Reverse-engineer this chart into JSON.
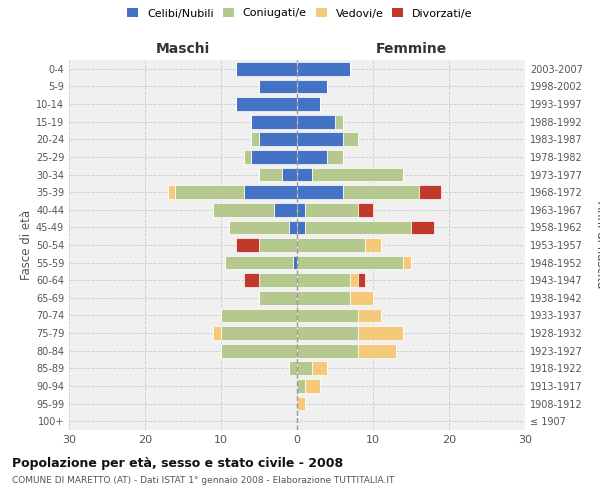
{
  "age_groups": [
    "100+",
    "95-99",
    "90-94",
    "85-89",
    "80-84",
    "75-79",
    "70-74",
    "65-69",
    "60-64",
    "55-59",
    "50-54",
    "45-49",
    "40-44",
    "35-39",
    "30-34",
    "25-29",
    "20-24",
    "15-19",
    "10-14",
    "5-9",
    "0-4"
  ],
  "birth_years": [
    "≤ 1907",
    "1908-1912",
    "1913-1917",
    "1918-1922",
    "1923-1927",
    "1928-1932",
    "1933-1937",
    "1938-1942",
    "1943-1947",
    "1948-1952",
    "1953-1957",
    "1958-1962",
    "1963-1967",
    "1968-1972",
    "1973-1977",
    "1978-1982",
    "1983-1987",
    "1988-1992",
    "1993-1997",
    "1998-2002",
    "2003-2007"
  ],
  "colors": {
    "celibe": "#4472c4",
    "coniugato": "#b5c98e",
    "vedovo": "#f5c97a",
    "divorziato": "#c0392b"
  },
  "males": {
    "celibe": [
      0,
      0,
      0,
      0,
      0,
      0,
      0,
      0,
      0,
      0.5,
      0,
      1,
      3,
      7,
      2,
      6,
      5,
      6,
      8,
      5,
      8
    ],
    "coniugato": [
      0,
      0,
      0,
      1,
      10,
      10,
      10,
      5,
      5,
      9,
      5,
      8,
      8,
      9,
      3,
      1,
      1,
      0,
      0,
      0,
      0
    ],
    "vedovo": [
      0,
      0,
      0,
      0,
      0,
      1,
      0,
      0,
      0,
      0,
      0,
      0,
      0,
      1,
      0,
      0,
      0,
      0,
      0,
      0,
      0
    ],
    "divorziato": [
      0,
      0,
      0,
      0,
      0,
      0,
      0,
      0,
      2,
      0,
      3,
      0,
      0,
      0,
      0,
      0,
      0,
      0,
      0,
      0,
      0
    ]
  },
  "females": {
    "celibe": [
      0,
      0,
      0,
      0,
      0,
      0,
      0,
      0,
      0,
      0,
      0,
      1,
      1,
      6,
      2,
      4,
      6,
      5,
      3,
      4,
      7
    ],
    "coniugato": [
      0,
      0,
      1,
      2,
      8,
      8,
      8,
      7,
      7,
      14,
      9,
      14,
      7,
      10,
      12,
      2,
      2,
      1,
      0,
      0,
      0
    ],
    "vedovo": [
      0,
      1,
      2,
      2,
      5,
      6,
      3,
      3,
      1,
      1,
      2,
      0,
      0,
      0,
      0,
      0,
      0,
      0,
      0,
      0,
      0
    ],
    "divorziato": [
      0,
      0,
      0,
      0,
      0,
      0,
      0,
      0,
      1,
      0,
      0,
      3,
      2,
      3,
      0,
      0,
      0,
      0,
      0,
      0,
      0
    ]
  },
  "title": "Popolazione per età, sesso e stato civile - 2008",
  "subtitle": "COMUNE DI MARETTO (AT) - Dati ISTAT 1° gennaio 2008 - Elaborazione TUTTITALIA.IT",
  "xlabel_left": "Maschi",
  "xlabel_right": "Femmine",
  "ylabel_left": "Fasce di età",
  "ylabel_right": "Anni di nascita",
  "xlim": 30,
  "legend_labels": [
    "Celibi/Nubili",
    "Coniugati/e",
    "Vedovi/e",
    "Divorzati/e"
  ],
  "bg_color": "#ffffff",
  "plot_bg_color": "#f0f0f0",
  "grid_color": "#cccccc"
}
